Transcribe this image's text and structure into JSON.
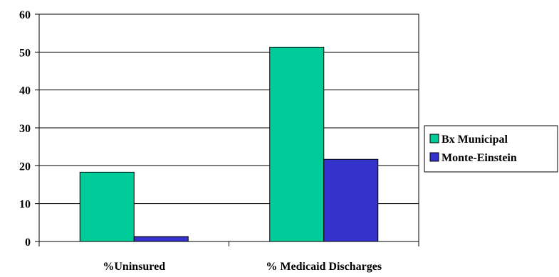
{
  "chart_data": {
    "type": "bar",
    "categories": [
      "%Uninsured",
      "% Medicaid Discharges"
    ],
    "series": [
      {
        "name": "Bx Municipal",
        "values": [
          18.3,
          51.3
        ],
        "color": "#00CC99"
      },
      {
        "name": "Monte-Einstein",
        "values": [
          1.3,
          21.7
        ],
        "color": "#3333CC"
      }
    ],
    "ylim": [
      0,
      60
    ],
    "yticks": [
      0,
      10,
      20,
      30,
      40,
      50,
      60
    ],
    "grid": true,
    "legend_position": "right"
  }
}
